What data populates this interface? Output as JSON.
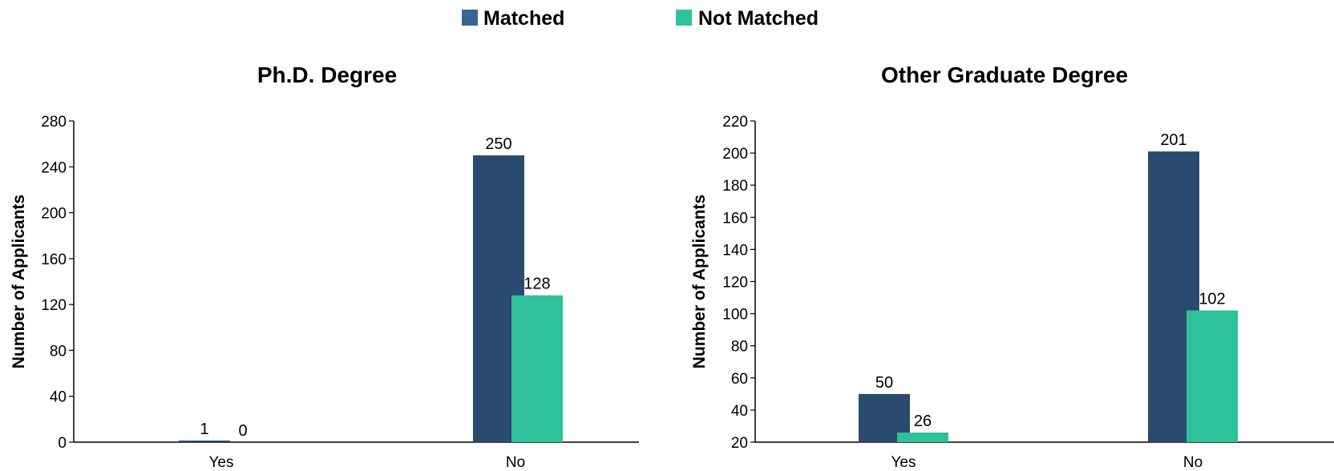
{
  "legend": [
    {
      "name": "Matched",
      "color": "#3a6496"
    },
    {
      "name": "Not Matched",
      "color": "#2ec19b"
    }
  ],
  "colors": {
    "matched_bar": "#2b4a6f",
    "not_matched_bar": "#2ec19b",
    "axis": "#000000"
  },
  "chart_data": [
    {
      "type": "bar",
      "title": "Ph.D. Degree",
      "xlabel": "",
      "ylabel": "Number of Applicants",
      "categories": [
        "Yes",
        "No"
      ],
      "series": [
        {
          "name": "Matched",
          "values": [
            1,
            250
          ]
        },
        {
          "name": "Not Matched",
          "values": [
            0,
            128
          ]
        }
      ],
      "ylim": [
        0,
        280
      ],
      "yticks": [
        0,
        40,
        80,
        120,
        160,
        200,
        240,
        280
      ],
      "grid": false,
      "legend_position": "top-center"
    },
    {
      "type": "bar",
      "title": "Other Graduate Degree",
      "xlabel": "",
      "ylabel": "Number of Applicants",
      "categories": [
        "Yes",
        "No"
      ],
      "series": [
        {
          "name": "Matched",
          "values": [
            50,
            201
          ]
        },
        {
          "name": "Not Matched",
          "values": [
            26,
            102
          ]
        }
      ],
      "ylim": [
        20,
        220
      ],
      "yticks": [
        20,
        40,
        60,
        80,
        100,
        120,
        140,
        160,
        180,
        200,
        220
      ],
      "grid": false,
      "legend_position": "top-center"
    }
  ]
}
